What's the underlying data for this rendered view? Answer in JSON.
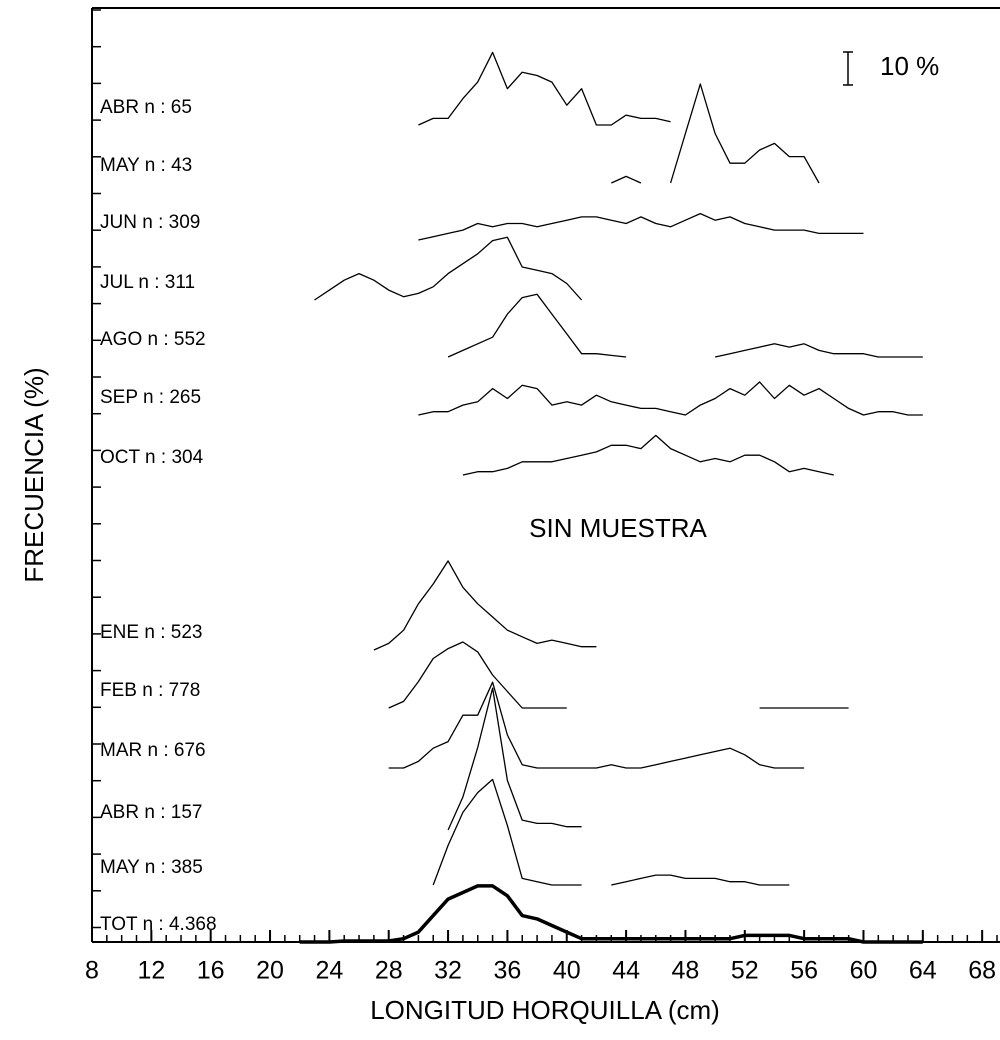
{
  "chart_data": {
    "type": "ridgeline",
    "xlabel": "LONGITUD HORQUILLA (cm)",
    "ylabel": "FRECUENCIA (%)",
    "annotation": "SIN MUESTRA",
    "scale_bar": {
      "value": 10,
      "label": "10 %"
    },
    "xlim": [
      8,
      69
    ],
    "xticks": [
      8,
      12,
      16,
      20,
      24,
      28,
      32,
      36,
      40,
      44,
      48,
      52,
      56,
      60,
      64,
      68
    ],
    "xminor_step": 1,
    "color": "#000000",
    "series": [
      {
        "name": "ABR n : 65",
        "x": [
          30,
          31,
          32,
          33,
          34,
          35,
          36,
          37,
          38,
          39,
          40,
          41,
          42,
          43,
          44,
          45,
          46,
          47
        ],
        "values": [
          0,
          2,
          2,
          8,
          13,
          22,
          11,
          16,
          15,
          13,
          6,
          11,
          0,
          0,
          3,
          2,
          2,
          1
        ]
      },
      {
        "name": "MAY n : 43",
        "x": [
          43,
          44,
          45,
          46,
          47,
          48,
          49,
          50,
          51,
          52,
          53,
          54,
          55,
          56,
          57
        ],
        "values": [
          0,
          2,
          0,
          null,
          0,
          15,
          30,
          15,
          6,
          6,
          10,
          12,
          8,
          8,
          0
        ]
      },
      {
        "name": "JUN n : 309",
        "x": [
          30,
          31,
          32,
          33,
          34,
          35,
          36,
          37,
          38,
          39,
          40,
          41,
          42,
          43,
          44,
          45,
          46,
          47,
          48,
          49,
          50,
          51,
          52,
          53,
          54,
          55,
          56,
          57,
          58,
          59,
          60
        ],
        "values": [
          0,
          1,
          2,
          3,
          5,
          4,
          5,
          5,
          4,
          5,
          6,
          7,
          7,
          6,
          5,
          7,
          5,
          4,
          6,
          8,
          6,
          7,
          5,
          4,
          3,
          3,
          3,
          2,
          2,
          2,
          2
        ]
      },
      {
        "name": "JUL n : 311",
        "x": [
          23,
          24,
          25,
          26,
          27,
          28,
          29,
          30,
          31,
          32,
          33,
          34,
          35,
          36,
          37,
          38,
          39,
          40,
          41
        ],
        "values": [
          0,
          3,
          6,
          8,
          6,
          3,
          1,
          2,
          4,
          8,
          11,
          14,
          18,
          19,
          10,
          9,
          8,
          5,
          0
        ]
      },
      {
        "name": "AGO n : 552",
        "x": [
          32,
          33,
          34,
          35,
          36,
          37,
          38,
          39,
          40,
          41,
          42,
          43,
          44,
          45,
          46,
          47,
          48,
          49,
          50,
          51,
          52,
          53,
          54,
          55,
          56,
          57,
          58,
          59,
          60,
          61,
          62,
          63,
          64
        ],
        "values": [
          0,
          2,
          4,
          6,
          13,
          18,
          19,
          13,
          7,
          1,
          1,
          0.5,
          0,
          null,
          null,
          null,
          null,
          null,
          0,
          1,
          2,
          3,
          4,
          3,
          4,
          2,
          1,
          1,
          1,
          0,
          0,
          0,
          0
        ]
      },
      {
        "name": "SEP n : 265",
        "x": [
          30,
          31,
          32,
          33,
          34,
          35,
          36,
          37,
          38,
          39,
          40,
          41,
          42,
          43,
          44,
          45,
          46,
          47,
          48,
          49,
          50,
          51,
          52,
          53,
          54,
          55,
          56,
          57,
          58,
          59,
          60,
          61,
          62,
          63,
          64
        ],
        "values": [
          0,
          1,
          1,
          3,
          4,
          8,
          5,
          9,
          8,
          3,
          4,
          3,
          6,
          4,
          3,
          2,
          2,
          1,
          0,
          3,
          5,
          8,
          6,
          10,
          5,
          9,
          6,
          8,
          5,
          2,
          0,
          1,
          1,
          0,
          0
        ]
      },
      {
        "name": "OCT n : 304",
        "x": [
          33,
          34,
          35,
          36,
          37,
          38,
          39,
          40,
          41,
          42,
          43,
          44,
          45,
          46,
          47,
          48,
          49,
          50,
          51,
          52,
          53,
          54,
          55,
          56,
          57,
          58
        ],
        "values": [
          0,
          1,
          1,
          2,
          4,
          4,
          4,
          5,
          6,
          7,
          9,
          9,
          8,
          12,
          8,
          6,
          4,
          5,
          4,
          6,
          6,
          4,
          1,
          2,
          1,
          0
        ]
      },
      {
        "name": "ENE n : 523",
        "x": [
          27,
          28,
          29,
          30,
          31,
          32,
          33,
          34,
          35,
          36,
          37,
          38,
          39,
          40,
          41,
          42
        ],
        "values": [
          0,
          2,
          6,
          14,
          20,
          27,
          19,
          14,
          10,
          6,
          4,
          2,
          3,
          2,
          1,
          1
        ]
      },
      {
        "name": "FEB n : 778",
        "x": [
          28,
          29,
          30,
          31,
          32,
          33,
          34,
          35,
          36,
          37,
          38,
          39,
          40,
          41,
          42,
          43,
          44,
          45,
          46,
          47,
          48,
          49,
          50,
          51,
          52,
          53,
          54,
          55,
          56,
          57,
          58,
          59
        ],
        "values": [
          0,
          2,
          8,
          15,
          18,
          20,
          17,
          10,
          5,
          0,
          0,
          0,
          0,
          null,
          null,
          null,
          null,
          null,
          null,
          null,
          null,
          null,
          null,
          null,
          null,
          0,
          0,
          0,
          0,
          0,
          0,
          0
        ]
      },
      {
        "name": "MAR n : 676",
        "x": [
          28,
          29,
          30,
          31,
          32,
          33,
          34,
          35,
          36,
          37,
          38,
          39,
          40,
          41,
          42,
          43,
          44,
          45,
          46,
          47,
          48,
          49,
          50,
          51,
          52,
          53,
          54,
          55,
          56
        ],
        "values": [
          0,
          0,
          2,
          6,
          8,
          16,
          16,
          26,
          10,
          1,
          0,
          0,
          0,
          0,
          0,
          1,
          0,
          0,
          1,
          2,
          3,
          4,
          5,
          6,
          4,
          1,
          0,
          0,
          0
        ]
      },
      {
        "name": "ABR n : 157",
        "x": [
          32,
          33,
          34,
          35,
          36,
          37,
          38,
          39,
          40,
          41
        ],
        "values": [
          0,
          10,
          25,
          43,
          15,
          3,
          2,
          2,
          1,
          1
        ]
      },
      {
        "name": "MAY n : 385",
        "x": [
          31,
          32,
          33,
          34,
          35,
          36,
          37,
          38,
          39,
          40,
          41,
          42,
          43,
          44,
          45,
          46,
          47,
          48,
          49,
          50,
          51,
          52,
          53,
          54,
          55
        ],
        "values": [
          0,
          12,
          22,
          28,
          32,
          18,
          2,
          1,
          0,
          0,
          0,
          null,
          0,
          1,
          2,
          3,
          3,
          2,
          2,
          2,
          1,
          1,
          0,
          0,
          0
        ]
      },
      {
        "name": "TOT n : 4.368",
        "bold": true,
        "x": [
          22,
          23,
          24,
          25,
          26,
          27,
          28,
          29,
          30,
          31,
          32,
          33,
          34,
          35,
          36,
          37,
          38,
          39,
          40,
          41,
          42,
          43,
          44,
          45,
          46,
          47,
          48,
          49,
          50,
          51,
          52,
          53,
          54,
          55,
          56,
          57,
          58,
          59,
          60,
          61,
          62,
          63,
          64
        ],
        "values": [
          0,
          0,
          0,
          0.3,
          0.3,
          0.3,
          0.3,
          1,
          3,
          8,
          13,
          15,
          17,
          17,
          14,
          8,
          7,
          5,
          3,
          1,
          1,
          1,
          1,
          1,
          1,
          1,
          1,
          1,
          1,
          1,
          2,
          2,
          2,
          2,
          1,
          1,
          1,
          1,
          0,
          0,
          0,
          0,
          0
        ]
      }
    ]
  }
}
